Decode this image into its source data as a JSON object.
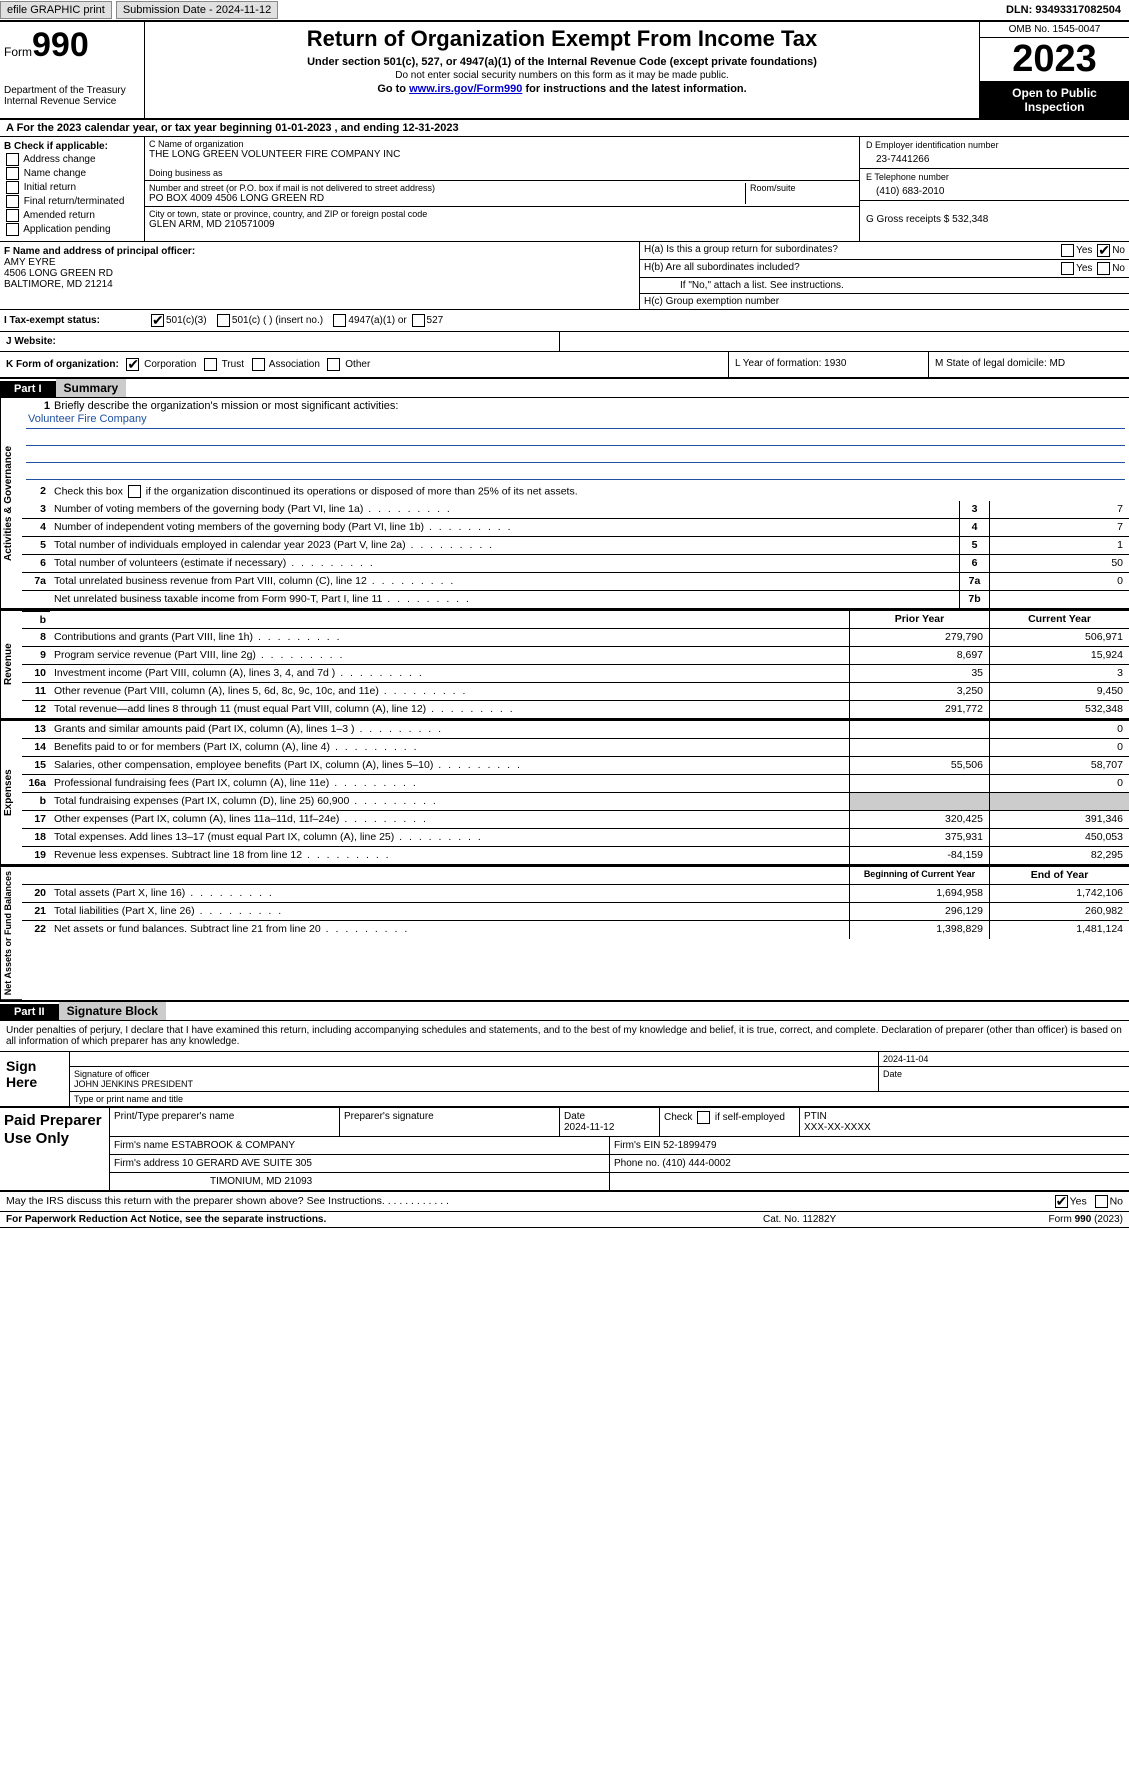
{
  "topbar": {
    "efile_label": "efile GRAPHIC print",
    "submission_label": "Submission Date - 2024-11-12",
    "dln_label": "DLN: 93493317082504"
  },
  "header": {
    "form_prefix": "Form",
    "form_num": "990",
    "dept": "Department of the Treasury\nInternal Revenue Service",
    "title": "Return of Organization Exempt From Income Tax",
    "subtitle1": "Under section 501(c), 527, or 4947(a)(1) of the Internal Revenue Code (except private foundations)",
    "subtitle2": "Do not enter social security numbers on this form as it may be made public.",
    "subtitle3_pre": "Go to ",
    "subtitle3_link": "www.irs.gov/Form990",
    "subtitle3_post": " for instructions and the latest information.",
    "omb": "OMB No. 1545-0047",
    "year": "2023",
    "open_inspection": "Open to Public Inspection"
  },
  "lineA": "A For the 2023 calendar year, or tax year beginning 01-01-2023   , and ending 12-31-2023",
  "boxB": {
    "title": "B Check if applicable:",
    "items": [
      "Address change",
      "Name change",
      "Initial return",
      "Final return/terminated",
      "Amended return",
      "Application pending"
    ]
  },
  "boxC": {
    "name_lbl": "C Name of organization",
    "name": "THE LONG GREEN VOLUNTEER FIRE COMPANY INC",
    "dba_lbl": "Doing business as",
    "dba": "",
    "street_lbl": "Number and street (or P.O. box if mail is not delivered to street address)",
    "street": "PO BOX 4009 4506 LONG GREEN RD",
    "room_lbl": "Room/suite",
    "city_lbl": "City or town, state or province, country, and ZIP or foreign postal code",
    "city": "GLEN ARM, MD  210571009"
  },
  "boxD": {
    "ein_lbl": "D Employer identification number",
    "ein": "23-7441266",
    "phone_lbl": "E Telephone number",
    "phone": "(410) 683-2010",
    "gross_lbl": "G Gross receipts $ ",
    "gross": "532,348"
  },
  "boxF": {
    "lbl": "F  Name and address of principal officer:",
    "name": "AMY EYRE",
    "addr1": "4506 LONG GREEN RD",
    "addr2": "BALTIMORE, MD  21214"
  },
  "boxH": {
    "ha_lbl": "H(a)  Is this a group return for subordinates?",
    "hb_lbl": "H(b)  Are all subordinates included?",
    "hb_note": "If \"No,\" attach a list. See instructions.",
    "hc_lbl": "H(c)  Group exemption number "
  },
  "taxexempt": {
    "lbl": "I   Tax-exempt status:",
    "opt1": "501(c)(3)",
    "opt2": "501(c) (  ) (insert no.)",
    "opt3": "4947(a)(1) or",
    "opt4": "527"
  },
  "website_lbl": "J   Website: ",
  "korg": {
    "lbl": "K Form of organization:",
    "opts": [
      "Corporation",
      "Trust",
      "Association",
      "Other"
    ],
    "L": "L Year of formation: 1930",
    "M": "M State of legal domicile: MD"
  },
  "part1": {
    "hdr": "Part I",
    "title": "Summary"
  },
  "governance": {
    "label": "Activities & Governance",
    "l1": "Briefly describe the organization's mission or most significant activities:",
    "mission": "Volunteer Fire Company",
    "l2": "Check this box       if the organization discontinued its operations or disposed of more than 25% of its net assets.",
    "rows": [
      {
        "n": "3",
        "t": "Number of voting members of the governing body (Part VI, line 1a)",
        "box": "3",
        "v": "7"
      },
      {
        "n": "4",
        "t": "Number of independent voting members of the governing body (Part VI, line 1b)",
        "box": "4",
        "v": "7"
      },
      {
        "n": "5",
        "t": "Total number of individuals employed in calendar year 2023 (Part V, line 2a)",
        "box": "5",
        "v": "1"
      },
      {
        "n": "6",
        "t": "Total number of volunteers (estimate if necessary)",
        "box": "6",
        "v": "50"
      },
      {
        "n": "7a",
        "t": "Total unrelated business revenue from Part VIII, column (C), line 12",
        "box": "7a",
        "v": "0"
      },
      {
        "n": "",
        "t": "Net unrelated business taxable income from Form 990-T, Part I, line 11",
        "box": "7b",
        "v": ""
      }
    ]
  },
  "revenue": {
    "label": "Revenue",
    "hdr_prior": "Prior Year",
    "hdr_cur": "Current Year",
    "rows": [
      {
        "n": "8",
        "t": "Contributions and grants (Part VIII, line 1h)",
        "p": "279,790",
        "c": "506,971"
      },
      {
        "n": "9",
        "t": "Program service revenue (Part VIII, line 2g)",
        "p": "8,697",
        "c": "15,924"
      },
      {
        "n": "10",
        "t": "Investment income (Part VIII, column (A), lines 3, 4, and 7d )",
        "p": "35",
        "c": "3"
      },
      {
        "n": "11",
        "t": "Other revenue (Part VIII, column (A), lines 5, 6d, 8c, 9c, 10c, and 11e)",
        "p": "3,250",
        "c": "9,450"
      },
      {
        "n": "12",
        "t": "Total revenue—add lines 8 through 11 (must equal Part VIII, column (A), line 12)",
        "p": "291,772",
        "c": "532,348"
      }
    ]
  },
  "expenses": {
    "label": "Expenses",
    "rows": [
      {
        "n": "13",
        "t": "Grants and similar amounts paid (Part IX, column (A), lines 1–3 )",
        "p": "",
        "c": "0"
      },
      {
        "n": "14",
        "t": "Benefits paid to or for members (Part IX, column (A), line 4)",
        "p": "",
        "c": "0"
      },
      {
        "n": "15",
        "t": "Salaries, other compensation, employee benefits (Part IX, column (A), lines 5–10)",
        "p": "55,506",
        "c": "58,707"
      },
      {
        "n": "16a",
        "t": "Professional fundraising fees (Part IX, column (A), line 11e)",
        "p": "",
        "c": "0"
      },
      {
        "n": "b",
        "t": "Total fundraising expenses (Part IX, column (D), line 25) 60,900",
        "p": "grey",
        "c": "grey"
      },
      {
        "n": "17",
        "t": "Other expenses (Part IX, column (A), lines 11a–11d, 11f–24e)",
        "p": "320,425",
        "c": "391,346"
      },
      {
        "n": "18",
        "t": "Total expenses. Add lines 13–17 (must equal Part IX, column (A), line 25)",
        "p": "375,931",
        "c": "450,053"
      },
      {
        "n": "19",
        "t": "Revenue less expenses. Subtract line 18 from line 12",
        "p": "-84,159",
        "c": "82,295"
      }
    ]
  },
  "netassets": {
    "label": "Net Assets or Fund Balances",
    "hdr_beg": "Beginning of Current Year",
    "hdr_end": "End of Year",
    "rows": [
      {
        "n": "20",
        "t": "Total assets (Part X, line 16)",
        "p": "1,694,958",
        "c": "1,742,106"
      },
      {
        "n": "21",
        "t": "Total liabilities (Part X, line 26)",
        "p": "296,129",
        "c": "260,982"
      },
      {
        "n": "22",
        "t": "Net assets or fund balances. Subtract line 21 from line 20",
        "p": "1,398,829",
        "c": "1,481,124"
      }
    ]
  },
  "part2": {
    "hdr": "Part II",
    "title": "Signature Block",
    "decl": "Under penalties of perjury, I declare that I have examined this return, including accompanying schedules and statements, and to the best of my knowledge and belief, it is true, correct, and complete. Declaration of preparer (other than officer) is based on all information of which preparer has any knowledge."
  },
  "sign": {
    "lbl": "Sign Here",
    "sig_lbl": "Signature of officer",
    "officer": "JOHN JENKINS PRESIDENT",
    "type_lbl": "Type or print name and title",
    "date_lbl": "Date",
    "date": "2024-11-04"
  },
  "paid": {
    "lbl": "Paid Preparer Use Only",
    "r1": {
      "c1": "Print/Type preparer's name",
      "c2": "Preparer's signature",
      "c3_lbl": "Date",
      "c3": "2024-11-12",
      "c4_lbl": "Check         if self-employed",
      "c5_lbl": "PTIN",
      "c5": "XXX-XX-XXXX"
    },
    "r2": {
      "c1_lbl": "Firm's name     ",
      "c1": "ESTABROOK & COMPANY",
      "c2_lbl": "Firm's EIN ",
      "c2": "52-1899479"
    },
    "r3": {
      "c1_lbl": "Firm's address ",
      "c1": "10 GERARD AVE SUITE 305",
      "c2_lbl": "Phone no. ",
      "c2": "(410) 444-0002"
    },
    "r4": {
      "c1": "TIMONIUM, MD  21093"
    }
  },
  "discuss": "May the IRS discuss this return with the preparer shown above? See Instructions.",
  "footer": {
    "f1": "For Paperwork Reduction Act Notice, see the separate instructions.",
    "f2": "Cat. No. 11282Y",
    "f3_pre": "Form ",
    "f3_b": "990",
    "f3_post": " (2023)"
  },
  "yn": {
    "yes": "Yes",
    "no": "No"
  }
}
